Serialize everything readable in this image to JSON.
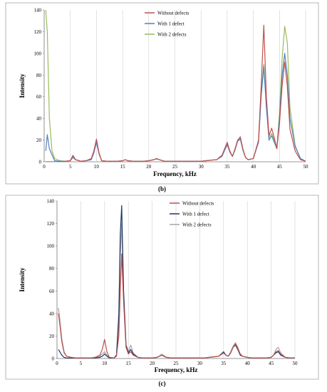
{
  "charts": [
    {
      "type": "line",
      "panel_label": "(b)",
      "xlabel": "Frequency, kHz",
      "ylabel": "Intensity",
      "xlim": [
        0,
        50
      ],
      "ylim": [
        0,
        140
      ],
      "xticks": [
        0,
        5,
        10,
        15,
        20,
        25,
        30,
        35,
        40,
        45,
        50
      ],
      "yticks": [
        0,
        20,
        40,
        60,
        80,
        100,
        120,
        140
      ],
      "grid": "vertical",
      "legend_position": "top-center",
      "series": [
        {
          "name": "Without defects",
          "color": "#c0504d",
          "x": [
            0.3,
            1,
            2,
            3,
            4,
            5,
            5.5,
            6,
            7,
            8,
            9,
            9.5,
            10,
            10.5,
            11,
            12,
            13,
            14,
            15,
            15.5,
            16,
            17,
            18,
            19,
            20,
            21,
            21.5,
            22,
            23,
            24,
            26,
            28,
            30,
            31,
            32,
            33,
            34,
            35,
            35.5,
            36,
            36.5,
            37,
            37.5,
            38,
            38.5,
            39,
            40,
            41,
            41.5,
            42,
            42.5,
            43,
            43.5,
            44,
            44.5,
            45,
            45.5,
            46,
            46.5,
            47,
            48,
            49,
            50
          ],
          "values": [
            0,
            0,
            0,
            0,
            0.5,
            1,
            6,
            2,
            0.5,
            1,
            3,
            10,
            21,
            8,
            1,
            0.5,
            0.5,
            0.5,
            1,
            2,
            1,
            0.5,
            0.5,
            0.5,
            1,
            2,
            3,
            2,
            0.5,
            0.5,
            0.5,
            0.5,
            0.5,
            1,
            1.5,
            2,
            6,
            18,
            10,
            5,
            12,
            20,
            23,
            12,
            4,
            2,
            3,
            20,
            70,
            126,
            60,
            24,
            31,
            22,
            12,
            35,
            70,
            92,
            70,
            30,
            10,
            2,
            0.5
          ]
        },
        {
          "name": "With 1 defect",
          "color": "#4f81bd",
          "x": [
            0.3,
            0.6,
            1,
            2,
            3,
            4,
            5,
            5.5,
            6,
            7,
            8,
            9,
            9.5,
            10,
            10.5,
            11,
            12,
            13,
            14,
            15,
            15.5,
            16,
            17,
            18,
            19,
            20,
            21,
            21.5,
            22,
            23,
            24,
            26,
            28,
            30,
            31,
            32,
            33,
            34,
            35,
            35.5,
            36,
            36.5,
            37,
            37.5,
            38,
            38.5,
            39,
            40,
            41,
            41.5,
            42,
            42.5,
            43,
            43.5,
            44,
            44.5,
            45,
            45.5,
            46,
            46.5,
            47,
            48,
            49,
            50
          ],
          "values": [
            10,
            25,
            12,
            1,
            0.5,
            0.5,
            1,
            4,
            2,
            0.5,
            1,
            2,
            8,
            18,
            7,
            1,
            0.5,
            0.5,
            0.5,
            1,
            2,
            1,
            0.5,
            0.5,
            0.5,
            1,
            2,
            3,
            2,
            0.5,
            0.5,
            0.5,
            0.5,
            0.5,
            1,
            1.5,
            2,
            5,
            16,
            9,
            5,
            11,
            19,
            21,
            11,
            4,
            2,
            3,
            18,
            60,
            88,
            50,
            20,
            24,
            18,
            12,
            40,
            80,
            100,
            80,
            40,
            14,
            3,
            0.5
          ]
        },
        {
          "name": "With 2 defects",
          "color": "#9bbb59",
          "x": [
            0.3,
            0.6,
            1,
            1.5,
            2,
            3,
            4,
            5,
            5.5,
            6,
            7,
            8,
            9,
            9.5,
            10,
            10.5,
            11,
            12,
            13,
            14,
            15,
            15.5,
            16,
            17,
            18,
            19,
            20,
            21,
            21.5,
            22,
            23,
            24,
            26,
            28,
            30,
            31,
            32,
            33,
            34,
            35,
            35.5,
            36,
            36.5,
            37,
            37.5,
            38,
            38.5,
            39,
            40,
            41,
            41.5,
            42,
            42.5,
            43,
            43.5,
            44,
            44.5,
            45,
            45.5,
            46,
            46.5,
            47,
            48,
            49,
            50
          ],
          "values": [
            140,
            120,
            40,
            10,
            3,
            1,
            0.5,
            1,
            5,
            2,
            0.5,
            1,
            2,
            9,
            19,
            7,
            1,
            0.5,
            0.5,
            0.5,
            1,
            2,
            1,
            0.5,
            0.5,
            0.5,
            1,
            2,
            2.5,
            2,
            0.5,
            0.5,
            0.5,
            0.5,
            0.5,
            1,
            1.5,
            2,
            5,
            17,
            9,
            5,
            11,
            19,
            22,
            11,
            4,
            2,
            3,
            19,
            65,
            90,
            55,
            22,
            26,
            20,
            13,
            45,
            95,
            125,
            110,
            50,
            15,
            3,
            0.5
          ]
        }
      ]
    },
    {
      "type": "line",
      "panel_label": "(c)",
      "xlabel": "Frequency, kHz",
      "ylabel": "Intensity",
      "xlim": [
        0,
        50
      ],
      "ylim": [
        0,
        140
      ],
      "xticks": [
        0,
        5,
        10,
        15,
        20,
        25,
        30,
        35,
        40,
        45,
        50
      ],
      "yticks": [
        0,
        20,
        40,
        60,
        80,
        100,
        120,
        140
      ],
      "grid": "vertical",
      "legend_position": "top-right",
      "series": [
        {
          "name": "Without defects",
          "color": "#c0504d",
          "x": [
            0.3,
            0.6,
            1,
            1.5,
            2,
            3,
            4,
            5,
            6,
            7,
            8,
            9,
            9.5,
            10,
            10.5,
            11,
            12,
            12.5,
            13,
            13.3,
            13.6,
            14,
            14.5,
            15,
            15.5,
            16,
            17,
            18,
            19,
            20,
            21,
            21.5,
            22,
            23,
            24,
            26,
            28,
            30,
            31,
            32,
            33,
            34,
            35,
            35.5,
            36,
            36.5,
            37,
            37.5,
            38,
            38.5,
            39,
            40,
            41,
            42,
            43,
            44,
            45,
            45.5,
            46,
            46.5,
            47,
            48,
            49,
            50
          ],
          "values": [
            40,
            30,
            15,
            5,
            2,
            1,
            0.5,
            0.5,
            0.5,
            0.5,
            1,
            3,
            8,
            17,
            6,
            1,
            0.5,
            2,
            20,
            60,
            93,
            50,
            10,
            4,
            6,
            3,
            1,
            0.5,
            0.5,
            0.5,
            1,
            2,
            3,
            1,
            0.5,
            0.5,
            0.5,
            0.5,
            0.5,
            1,
            1.5,
            2,
            5,
            3,
            2,
            5,
            10,
            13,
            9,
            4,
            2,
            1,
            0.5,
            0.5,
            0.5,
            0.5,
            1,
            3,
            6,
            7,
            4,
            1,
            0.5,
            0.5
          ]
        },
        {
          "name": "With 1 defect",
          "color": "#1f3864",
          "x": [
            0.3,
            0.6,
            1,
            1.5,
            2,
            3,
            4,
            5,
            6,
            7,
            8,
            9,
            9.5,
            10,
            10.5,
            11,
            12,
            12.5,
            13,
            13.3,
            13.6,
            14,
            14.5,
            15,
            15.5,
            16,
            17,
            18,
            19,
            20,
            21,
            21.5,
            22,
            23,
            24,
            26,
            28,
            30,
            31,
            32,
            33,
            34,
            35,
            35.5,
            36,
            36.5,
            37,
            37.5,
            38,
            38.5,
            39,
            40,
            41,
            42,
            43,
            44,
            45,
            45.5,
            46,
            46.5,
            47,
            48,
            49,
            50
          ],
          "values": [
            8,
            6,
            3,
            1,
            0.5,
            0.5,
            0.5,
            0.5,
            0.5,
            0.5,
            0.5,
            1,
            2,
            4,
            2,
            0.5,
            0.5,
            3,
            40,
            110,
            136,
            60,
            12,
            5,
            8,
            4,
            1,
            0.5,
            0.5,
            0.5,
            1,
            2,
            3,
            1,
            0.5,
            0.5,
            0.5,
            0.5,
            0.5,
            1,
            1.5,
            2,
            6,
            3,
            2,
            5,
            10,
            12,
            8,
            3,
            2,
            1,
            0.5,
            0.5,
            0.5,
            0.5,
            1,
            3,
            5,
            6,
            3,
            1,
            0.5,
            0.5
          ]
        },
        {
          "name": "With 2 defects",
          "color": "#a6a6a6",
          "x": [
            0.3,
            0.6,
            1,
            1.5,
            2,
            3,
            4,
            5,
            6,
            7,
            8,
            9,
            9.5,
            10,
            10.5,
            11,
            12,
            12.5,
            13,
            13.3,
            13.6,
            14,
            14.5,
            15,
            15.5,
            16,
            17,
            18,
            19,
            20,
            21,
            21.5,
            22,
            23,
            24,
            26,
            28,
            30,
            31,
            32,
            33,
            34,
            35,
            35.5,
            36,
            36.5,
            37,
            37.5,
            38,
            38.5,
            39,
            40,
            41,
            42,
            43,
            44,
            45,
            45.5,
            46,
            46.5,
            47,
            48,
            49,
            50
          ],
          "values": [
            45,
            35,
            18,
            6,
            2,
            1,
            0.5,
            0.5,
            0.5,
            0.5,
            1,
            2,
            4,
            6,
            3,
            1,
            0.5,
            2,
            30,
            90,
            120,
            55,
            12,
            6,
            12,
            5,
            1,
            0.5,
            0.5,
            0.5,
            1,
            2,
            4,
            1,
            0.5,
            0.5,
            0.5,
            0.5,
            0.5,
            1,
            1.5,
            2,
            5,
            3,
            2,
            6,
            11,
            14,
            10,
            4,
            2,
            1,
            0.5,
            0.5,
            0.5,
            0.5,
            1,
            3,
            8,
            10,
            5,
            1,
            0.5,
            0.5
          ]
        }
      ]
    }
  ]
}
